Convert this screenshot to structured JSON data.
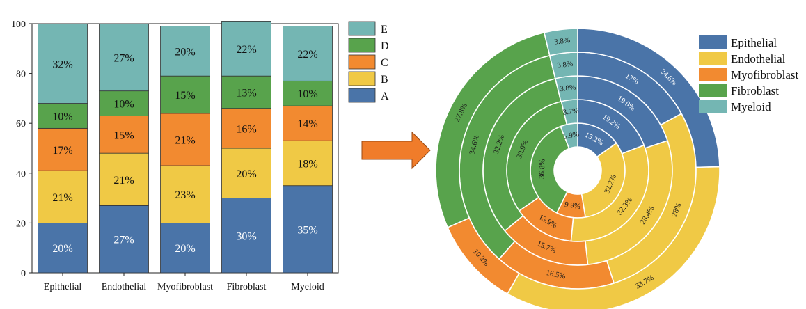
{
  "colors": {
    "A": "#4a74a8",
    "B": "#f0c945",
    "C": "#f28a30",
    "D": "#58a34c",
    "E": "#74b6b3",
    "arrow": "#f07c2a"
  },
  "chart_data": [
    {
      "type": "bar",
      "stacked": true,
      "categories": [
        "Epithelial",
        "Endothelial",
        "Myofibroblast",
        "Fibroblast",
        "Myeloid"
      ],
      "series": [
        {
          "name": "A",
          "values": [
            20,
            27,
            20,
            30,
            35
          ],
          "labels": [
            "20%",
            "27%",
            "20%",
            "30%",
            "35%"
          ]
        },
        {
          "name": "B",
          "values": [
            21,
            21,
            23,
            20,
            18
          ],
          "labels": [
            "21%",
            "21%",
            "23%",
            "20%",
            "18%"
          ]
        },
        {
          "name": "C",
          "values": [
            17,
            15,
            21,
            16,
            14
          ],
          "labels": [
            "17%",
            "15%",
            "21%",
            "16%",
            "14%"
          ]
        },
        {
          "name": "D",
          "values": [
            10,
            10,
            15,
            13,
            10
          ],
          "labels": [
            "10%",
            "10%",
            "15%",
            "13%",
            "10%"
          ]
        },
        {
          "name": "E",
          "values": [
            32,
            27,
            20,
            22,
            22
          ],
          "labels": [
            "32%",
            "27%",
            "20%",
            "22%",
            "22%"
          ]
        }
      ],
      "yticks": [
        "0",
        "20",
        "40",
        "60",
        "80",
        "100"
      ],
      "ylim": [
        0,
        100
      ],
      "legend": [
        "E",
        "D",
        "C",
        "B",
        "A"
      ],
      "legend_position": "top-right"
    },
    {
      "type": "pie",
      "subtype": "multi-ring donut",
      "categories": [
        "Epithelial",
        "Endothelial",
        "Myofibroblast",
        "Fibroblast",
        "Myeloid"
      ],
      "rings": [
        {
          "name": "A",
          "values": [
            15.2,
            32.2,
            9.9,
            36.8,
            5.9
          ],
          "labels": [
            "15.2%",
            "32.2%",
            "9.9%",
            "36.8%",
            "5.9%"
          ]
        },
        {
          "name": "B",
          "values": [
            19.2,
            32.3,
            13.9,
            30.9,
            3.7
          ],
          "labels": [
            "19.2%",
            "32.3%",
            "13.9%",
            "30.9%",
            "3.7%"
          ]
        },
        {
          "name": "C",
          "values": [
            19.9,
            28.4,
            15.7,
            32.2,
            3.8
          ],
          "labels": [
            "19.9%",
            "28.4%",
            "15.7%",
            "32.2%",
            "3.8%"
          ]
        },
        {
          "name": "D",
          "values": [
            17,
            28,
            16.5,
            34.6,
            3.8
          ],
          "labels": [
            "17%",
            "28%",
            "16.5%",
            "34.6%",
            "3.8%"
          ]
        },
        {
          "name": "E",
          "values": [
            24.6,
            33.7,
            10.2,
            27.8,
            3.8
          ],
          "labels": [
            "24.6%",
            "33.7%",
            "10.2%",
            "27.8%",
            "3.8%"
          ]
        }
      ],
      "legend": [
        "Epithelial",
        "Endothelial",
        "Myofibroblast",
        "Fibroblast",
        "Myeloid"
      ],
      "legend_position": "top-right"
    }
  ]
}
